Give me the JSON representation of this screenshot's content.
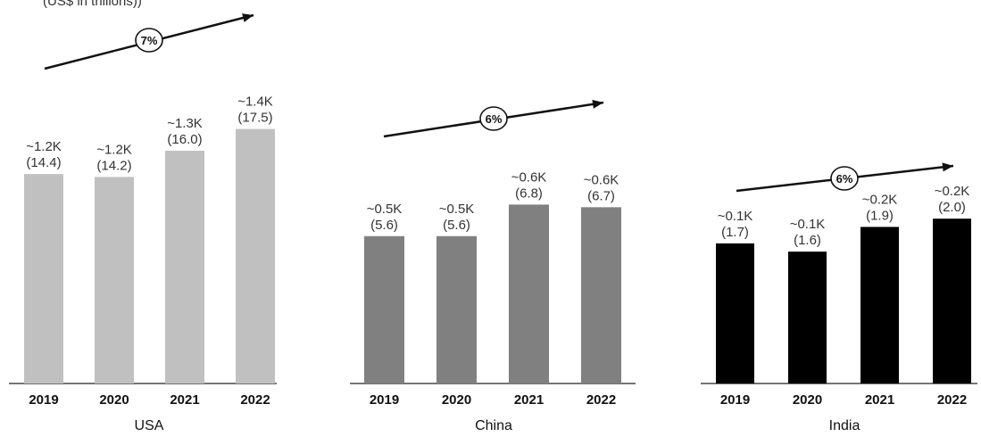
{
  "header": {
    "text": "(US$ in trillions))"
  },
  "chart_data": [
    {
      "type": "bar",
      "panel": "USA",
      "color": "#c0c0c0",
      "categories": [
        "2019",
        "2020",
        "2021",
        "2022"
      ],
      "values": [
        14.4,
        14.2,
        16.0,
        17.5
      ],
      "top_labels": [
        "~1.2K",
        "~1.2K",
        "~1.3K",
        "~1.4K"
      ],
      "value_labels": [
        "(14.4)",
        "(14.2)",
        "(16.0)",
        "(17.5)"
      ],
      "cagr": "7%"
    },
    {
      "type": "bar",
      "panel": "China",
      "color": "#808080",
      "categories": [
        "2019",
        "2020",
        "2021",
        "2022"
      ],
      "values": [
        5.6,
        5.6,
        6.8,
        6.7
      ],
      "top_labels": [
        "~0.5K",
        "~0.5K",
        "~0.6K",
        "~0.6K"
      ],
      "value_labels": [
        "(5.6)",
        "(5.6)",
        "(6.8)",
        "(6.7)"
      ],
      "cagr": "6%"
    },
    {
      "type": "bar",
      "panel": "India",
      "color": "#000000",
      "categories": [
        "2019",
        "2020",
        "2021",
        "2022"
      ],
      "values": [
        1.7,
        1.6,
        1.9,
        2.0
      ],
      "top_labels": [
        "~0.1K",
        "~0.1K",
        "~0.2K",
        "~0.2K"
      ],
      "value_labels": [
        "(1.7)",
        "(1.6)",
        "(1.9)",
        "(2.0)"
      ],
      "cagr": "6%"
    }
  ]
}
